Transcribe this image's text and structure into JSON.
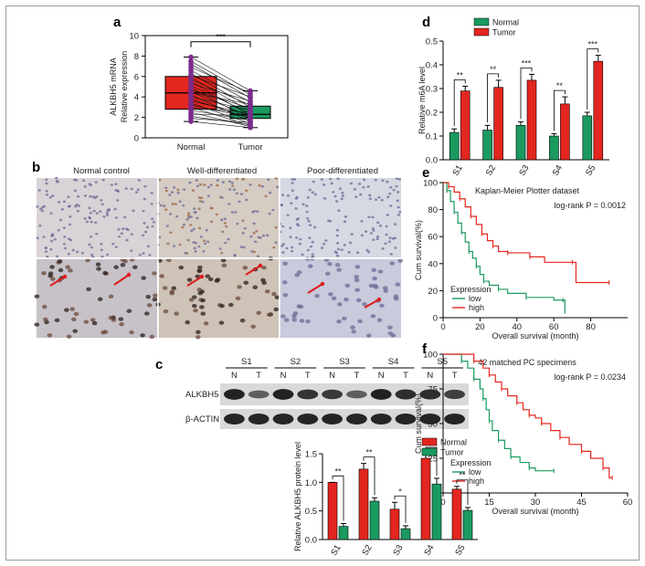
{
  "chart_data": [
    {
      "panel": "a",
      "type": "box",
      "ylabel": [
        "ALKBH5 mRNA",
        "Relative expression"
      ],
      "categories": [
        "Normal",
        "Tumor"
      ],
      "ylim": [
        0,
        10
      ],
      "yticks": [
        "0",
        "2",
        "4",
        "6",
        "8",
        "10"
      ],
      "colors": {
        "Normal": "#e3261f",
        "Tumor": "#1b9a5f",
        "points": "#7a2b8c"
      },
      "boxes": [
        {
          "category": "Normal",
          "min": 1.6,
          "q1": 2.8,
          "median": 4.4,
          "q3": 6.0,
          "max": 7.9
        },
        {
          "category": "Tumor",
          "min": 1.0,
          "q1": 1.9,
          "median": 2.3,
          "q3": 3.1,
          "max": 4.6
        }
      ],
      "paired_points": [
        [
          7.9,
          4.6
        ],
        [
          7.5,
          4.2
        ],
        [
          7.2,
          3.9
        ],
        [
          6.9,
          4.4
        ],
        [
          6.6,
          3.5
        ],
        [
          6.3,
          3.0
        ],
        [
          6.1,
          4.0
        ],
        [
          5.9,
          2.6
        ],
        [
          5.7,
          3.2
        ],
        [
          5.5,
          2.2
        ],
        [
          5.3,
          3.6
        ],
        [
          5.1,
          2.4
        ],
        [
          4.9,
          1.8
        ],
        [
          4.7,
          2.9
        ],
        [
          4.5,
          2.1
        ],
        [
          4.4,
          3.3
        ],
        [
          4.2,
          1.6
        ],
        [
          4.0,
          2.7
        ],
        [
          3.8,
          1.9
        ],
        [
          3.6,
          2.3
        ],
        [
          3.4,
          1.4
        ],
        [
          3.2,
          2.0
        ],
        [
          3.0,
          1.2
        ],
        [
          2.9,
          2.5
        ],
        [
          2.7,
          1.7
        ],
        [
          2.5,
          1.1
        ],
        [
          2.3,
          2.2
        ],
        [
          2.1,
          1.3
        ],
        [
          1.9,
          1.5
        ],
        [
          1.6,
          1.0
        ]
      ],
      "significance": "***"
    },
    {
      "panel": "d",
      "type": "bar",
      "ylabel": "Relative m6A level",
      "categories": [
        "S1",
        "S2",
        "S3",
        "S4",
        "S5"
      ],
      "ylim": [
        0,
        0.5
      ],
      "yticks": [
        "0.0",
        "0.1",
        "0.2",
        "0.3",
        "0.4",
        "0.5"
      ],
      "series": [
        {
          "name": "Normal",
          "color": "#1b9a5f",
          "values": [
            0.115,
            0.125,
            0.145,
            0.1,
            0.185
          ],
          "errors": [
            0.015,
            0.02,
            0.015,
            0.01,
            0.015
          ]
        },
        {
          "name": "Tumor",
          "color": "#e3261f",
          "values": [
            0.29,
            0.305,
            0.335,
            0.235,
            0.415
          ],
          "errors": [
            0.02,
            0.03,
            0.025,
            0.03,
            0.025
          ]
        }
      ],
      "significance": [
        "**",
        "**",
        "***",
        "**",
        "***"
      ],
      "legend": "top-left"
    },
    {
      "panel": "e",
      "type": "line",
      "title": "Kaplan-Meier Plotter dataset",
      "annotation": "log-rank P = 0.0012",
      "ylabel": "Cum survival(%)",
      "xlabel": "Overall survival (month)",
      "xlim": [
        0,
        100
      ],
      "ylim": [
        0,
        100
      ],
      "xticks": [
        "0",
        "20",
        "40",
        "60",
        "80"
      ],
      "yticks": [
        "0",
        "20",
        "40",
        "60",
        "80",
        "100"
      ],
      "legend_title": "Expression",
      "series": [
        {
          "name": "low",
          "color": "#1b9a5f",
          "x": [
            0,
            2,
            4,
            6,
            8,
            10,
            12,
            14,
            16,
            18,
            20,
            22,
            25,
            30,
            35,
            45,
            60,
            65,
            66
          ],
          "y": [
            100,
            94,
            86,
            78,
            70,
            63,
            56,
            49,
            44,
            38,
            32,
            27,
            24,
            21,
            18,
            15,
            13,
            13,
            3
          ]
        },
        {
          "name": "high",
          "color": "#e3261f",
          "x": [
            0,
            3,
            6,
            9,
            12,
            15,
            18,
            21,
            24,
            27,
            30,
            35,
            40,
            47,
            55,
            70,
            72,
            90
          ],
          "y": [
            100,
            97,
            93,
            88,
            82,
            75,
            69,
            62,
            57,
            53,
            49,
            48,
            48,
            45,
            41,
            41,
            26,
            26
          ]
        }
      ]
    },
    {
      "panel": "f",
      "type": "line",
      "title": "42 matched PC specimens",
      "annotation": "log-rank P = 0.0234",
      "ylabel": "Cum survival(%)",
      "xlabel": "Overall survival (month)",
      "xlim": [
        0,
        60
      ],
      "ylim": [
        0,
        100
      ],
      "xticks": [
        "0",
        "15",
        "30",
        "45",
        "60"
      ],
      "yticks": [
        "0",
        "25",
        "50",
        "75",
        "100"
      ],
      "legend_title": "Expression",
      "series": [
        {
          "name": "low",
          "color": "#1b9a5f",
          "x": [
            0,
            6,
            8,
            10,
            12,
            13,
            14,
            15,
            16,
            18,
            20,
            22,
            25,
            28,
            30,
            36
          ],
          "y": [
            100,
            95,
            90,
            82,
            75,
            68,
            60,
            52,
            45,
            38,
            32,
            26,
            22,
            18,
            16,
            16
          ]
        },
        {
          "name": "high",
          "color": "#e3261f",
          "x": [
            0,
            10,
            13,
            15,
            17,
            19,
            21,
            24,
            26,
            28,
            30,
            32,
            35,
            38,
            41,
            45,
            48,
            52,
            54,
            55
          ],
          "y": [
            100,
            95,
            90,
            85,
            80,
            75,
            70,
            65,
            60,
            56,
            54,
            50,
            45,
            40,
            35,
            30,
            25,
            18,
            11,
            11
          ]
        }
      ]
    },
    {
      "panel": "c-bar",
      "type": "bar",
      "ylabel": "Relative ALKBH5 protein level",
      "categories": [
        "S1",
        "S2",
        "S3",
        "S4",
        "S5"
      ],
      "ylim": [
        0,
        1.5
      ],
      "yticks": [
        "0.0",
        "0.5",
        "1.0",
        "1.5"
      ],
      "series": [
        {
          "name": "Normal",
          "color": "#e3261f",
          "values": [
            1.0,
            1.23,
            0.53,
            1.42,
            0.88
          ],
          "errors": [
            0,
            0.1,
            0.12,
            0.08,
            0.05
          ]
        },
        {
          "name": "Tumor",
          "color": "#1b9a5f",
          "values": [
            0.23,
            0.67,
            0.19,
            0.97,
            0.51
          ],
          "errors": [
            0.05,
            0.06,
            0.05,
            0.1,
            0.05
          ]
        }
      ],
      "significance": [
        "**",
        "**",
        "*",
        "**",
        "**"
      ],
      "legend": "top-right"
    }
  ],
  "panel_a": {
    "letter": "a"
  },
  "panel_b": {
    "letter": "b",
    "headers": [
      "Normal control",
      "Well-differentiated",
      "Poor-differentiated"
    ]
  },
  "panel_c": {
    "letter": "c",
    "samples": [
      "S1",
      "S2",
      "S3",
      "S4",
      "S5"
    ],
    "lanes": [
      "N",
      "T",
      "N",
      "T",
      "N",
      "T",
      "N",
      "T",
      "N",
      "T"
    ],
    "rows": [
      "ALKBH5",
      "β-ACTIN"
    ]
  },
  "panel_d": {
    "letter": "d"
  },
  "panel_e": {
    "letter": "e"
  },
  "panel_f": {
    "letter": "f"
  }
}
